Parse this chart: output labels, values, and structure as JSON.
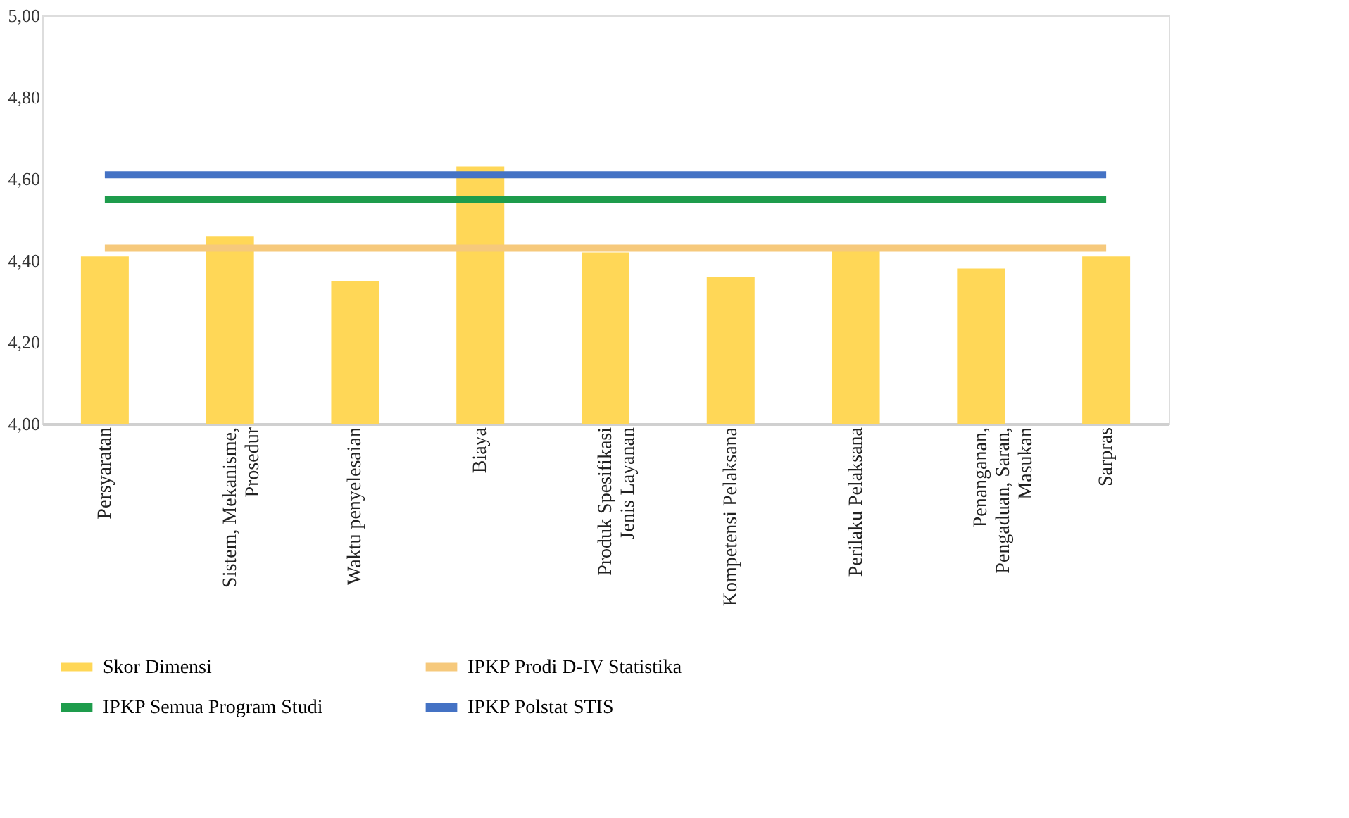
{
  "chart_data": {
    "type": "bar",
    "categories": [
      "Persyaratan",
      "Sistem, Mekanisme, Prosedur",
      "Waktu penyelesaian",
      "Biaya",
      "Produk Spesifikasi Jenis Layanan",
      "Kompetensi Pelaksana",
      "Perilaku Pelaksana",
      "Penanganan, Pengaduan, Saran, Masukan",
      "Sarpras"
    ],
    "series": [
      {
        "name": "Skor Dimensi",
        "color": "#ffd757",
        "values": [
          4.41,
          4.46,
          4.35,
          4.63,
          4.42,
          4.36,
          4.43,
          4.38,
          4.41
        ]
      },
      {
        "name": "IPKP Prodi D-IV Statistika",
        "type": "line",
        "color": "#f6c97c",
        "values": [
          4.43,
          4.43,
          4.43,
          4.43,
          4.43,
          4.43,
          4.43,
          4.43,
          4.43
        ]
      },
      {
        "name": "IPKP Semua Program Studi",
        "type": "line",
        "color": "#1e9c4c",
        "values": [
          4.55,
          4.55,
          4.55,
          4.55,
          4.55,
          4.55,
          4.55,
          4.55,
          4.55
        ]
      },
      {
        "name": "IPKP Polstat STIS",
        "type": "line",
        "color": "#4472c4",
        "values": [
          4.61,
          4.61,
          4.61,
          4.61,
          4.61,
          4.61,
          4.61,
          4.61,
          4.61
        ]
      }
    ],
    "ylim": [
      4.0,
      5.0
    ],
    "yticks": [
      {
        "value": 4.0,
        "label": "4,00"
      },
      {
        "value": 4.2,
        "label": "4,20"
      },
      {
        "value": 4.4,
        "label": "4,40"
      },
      {
        "value": 4.6,
        "label": "4,60"
      },
      {
        "value": 4.8,
        "label": "4,80"
      },
      {
        "value": 5.0,
        "label": "5,00"
      }
    ],
    "grid": false,
    "legend": "bottom",
    "marker": "none",
    "line_style": "solid"
  }
}
